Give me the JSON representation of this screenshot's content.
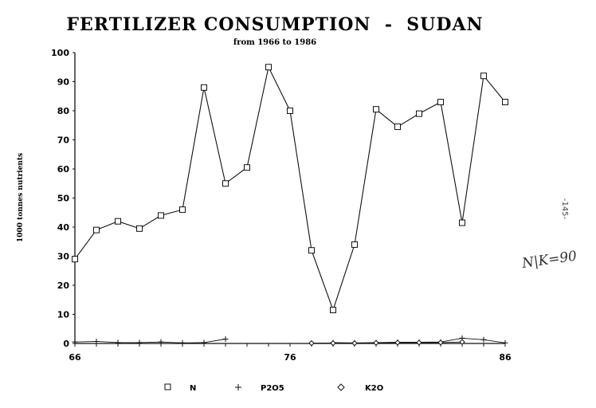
{
  "chart_data": {
    "type": "line",
    "title": "FERTILIZER CONSUMPTION  -  SUDAN",
    "subtitle": "from 1966 to 1986",
    "ylabel": "1000 tonnes nutrients",
    "xlabel": "",
    "xlim": [
      66,
      86
    ],
    "ylim": [
      0,
      100
    ],
    "x_ticks": [
      "66",
      "76",
      "86"
    ],
    "y_ticks": [
      "0",
      "10",
      "20",
      "30",
      "40",
      "50",
      "60",
      "70",
      "80",
      "90",
      "100"
    ],
    "grid": false,
    "legend_position": "bottom",
    "x": [
      66,
      67,
      68,
      69,
      70,
      71,
      72,
      73,
      74,
      75,
      76,
      77,
      78,
      79,
      80,
      81,
      82,
      83,
      84,
      85,
      86
    ],
    "series": [
      {
        "name": "N",
        "marker": "square",
        "values": [
          29,
          39,
          42,
          39.5,
          44,
          46,
          88,
          55,
          60.5,
          95,
          80,
          32,
          11.5,
          34,
          80.5,
          74.5,
          79,
          83,
          41.5,
          92,
          83
        ]
      },
      {
        "name": "P2O5",
        "marker": "plus",
        "values": [
          0.5,
          0.7,
          0.3,
          0.3,
          0.5,
          0.2,
          0.3,
          1.5,
          null,
          null,
          null,
          null,
          0.3,
          0.2,
          0.3,
          0.4,
          0.4,
          0.5,
          1.8,
          1.3,
          0.2
        ]
      },
      {
        "name": "K2O",
        "marker": "diamond",
        "values": [
          null,
          null,
          null,
          null,
          null,
          null,
          null,
          null,
          null,
          null,
          null,
          0.1,
          0.1,
          0.1,
          0.2,
          0.3,
          0.3,
          0.3,
          0.5,
          null,
          null
        ]
      }
    ]
  },
  "annotations": {
    "page_number": "-145-",
    "handwritten_note": "N|K=90"
  }
}
